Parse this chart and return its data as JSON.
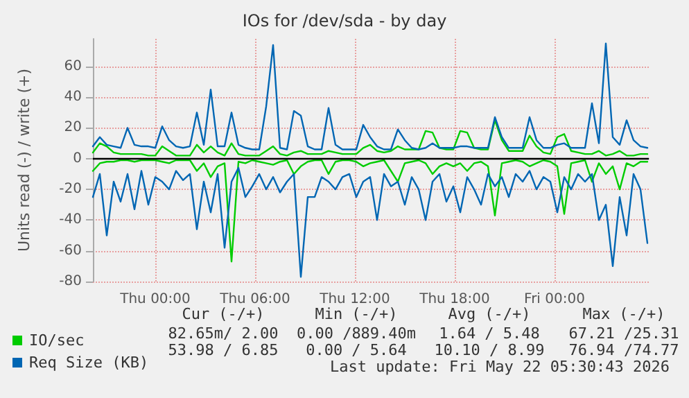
{
  "chart_data": {
    "type": "line",
    "title": "IOs for /dev/sda - by day",
    "ylabel": "Units read (-) / write (+)",
    "x": [
      "2026-05-20T20:15",
      "2026-05-20T20:40",
      "2026-05-20T21:05",
      "2026-05-20T21:30",
      "2026-05-20T21:55",
      "2026-05-20T22:20",
      "2026-05-20T22:45",
      "2026-05-20T23:10",
      "2026-05-20T23:35",
      "2026-05-21T00:00",
      "2026-05-21T00:25",
      "2026-05-21T00:50",
      "2026-05-21T01:15",
      "2026-05-21T01:40",
      "2026-05-21T02:05",
      "2026-05-21T02:30",
      "2026-05-21T02:55",
      "2026-05-21T03:20",
      "2026-05-21T03:45",
      "2026-05-21T04:10",
      "2026-05-21T04:35",
      "2026-05-21T05:00",
      "2026-05-21T05:25",
      "2026-05-21T05:50",
      "2026-05-21T06:15",
      "2026-05-21T06:40",
      "2026-05-21T07:05",
      "2026-05-21T07:30",
      "2026-05-21T07:55",
      "2026-05-21T08:20",
      "2026-05-21T08:45",
      "2026-05-21T09:10",
      "2026-05-21T09:35",
      "2026-05-21T10:00",
      "2026-05-21T10:25",
      "2026-05-21T10:50",
      "2026-05-21T11:15",
      "2026-05-21T11:40",
      "2026-05-21T12:05",
      "2026-05-21T12:30",
      "2026-05-21T12:55",
      "2026-05-21T13:20",
      "2026-05-21T13:45",
      "2026-05-21T14:10",
      "2026-05-21T14:35",
      "2026-05-21T15:00",
      "2026-05-21T15:25",
      "2026-05-21T15:50",
      "2026-05-21T16:15",
      "2026-05-21T16:40",
      "2026-05-21T17:05",
      "2026-05-21T17:30",
      "2026-05-21T17:55",
      "2026-05-21T18:20",
      "2026-05-21T18:45",
      "2026-05-21T19:10",
      "2026-05-21T19:35",
      "2026-05-21T20:00",
      "2026-05-21T20:25",
      "2026-05-21T20:50",
      "2026-05-21T21:15",
      "2026-05-21T21:40",
      "2026-05-21T22:05",
      "2026-05-21T22:30",
      "2026-05-21T22:55",
      "2026-05-21T23:20",
      "2026-05-21T23:45",
      "2026-05-22T00:10",
      "2026-05-22T00:35",
      "2026-05-22T01:00",
      "2026-05-22T01:25",
      "2026-05-22T01:50",
      "2026-05-22T02:15",
      "2026-05-22T02:40",
      "2026-05-22T03:05",
      "2026-05-22T03:30",
      "2026-05-22T03:55",
      "2026-05-22T04:20",
      "2026-05-22T04:45",
      "2026-05-22T05:10",
      "2026-05-22T05:35"
    ],
    "series": [
      {
        "name": "IO/sec",
        "color": "#00cc00",
        "values": [
          4,
          10,
          8,
          4,
          3,
          3,
          3,
          3,
          2,
          2,
          8,
          5,
          2,
          2,
          2,
          9,
          4,
          8,
          4,
          2,
          10,
          3,
          2,
          2,
          2,
          5,
          8,
          3,
          2,
          4,
          5,
          3,
          3,
          3,
          5,
          4,
          3,
          3,
          3,
          7,
          9,
          5,
          4,
          5,
          8,
          6,
          6,
          6,
          18,
          17,
          7,
          6,
          6,
          18,
          17,
          7,
          6,
          6,
          25,
          12,
          5,
          5,
          5,
          15,
          8,
          4,
          3,
          14,
          16,
          5,
          4,
          3,
          3,
          5,
          2,
          3,
          5,
          2,
          2,
          3,
          3
        ]
      },
      {
        "color": "#00cc00",
        "values": [
          -8,
          -3,
          -2,
          -2,
          -1,
          -1,
          -2,
          -1,
          -1,
          -1,
          -2,
          -3,
          -1,
          -1,
          -1,
          -8,
          -3,
          -12,
          -5,
          -3,
          -67,
          -2,
          -3,
          -1,
          -2,
          -3,
          -4,
          -2,
          -1,
          -10,
          -5,
          -2,
          -1,
          -1,
          -10,
          -2,
          -1,
          -1,
          -2,
          -5,
          -3,
          -2,
          -1,
          -8,
          -15,
          -3,
          -2,
          -1,
          -3,
          -10,
          -5,
          -3,
          -5,
          -3,
          -8,
          -3,
          -2,
          -5,
          -37,
          -3,
          -2,
          -1,
          -2,
          -5,
          -3,
          -1,
          -2,
          -5,
          -36,
          -3,
          -2,
          -1,
          -15,
          -3,
          -10,
          -5,
          -20,
          -3,
          -5,
          -2,
          -2
        ]
      },
      {
        "name": "Req Size (KB)",
        "color": "#0066b3",
        "values": [
          8,
          14,
          9,
          8,
          7,
          20,
          9,
          8,
          8,
          7,
          21,
          12,
          8,
          7,
          8,
          30,
          9,
          45,
          8,
          8,
          30,
          9,
          7,
          6,
          6,
          34,
          74,
          7,
          6,
          31,
          28,
          8,
          6,
          6,
          33,
          9,
          6,
          6,
          6,
          22,
          14,
          8,
          6,
          6,
          19,
          12,
          7,
          6,
          7,
          10,
          7,
          7,
          7,
          8,
          8,
          7,
          7,
          7,
          27,
          14,
          7,
          7,
          7,
          27,
          12,
          7,
          7,
          9,
          10,
          7,
          7,
          7,
          36,
          10,
          75,
          14,
          9,
          25,
          12,
          8,
          7
        ]
      },
      {
        "color": "#0066b3",
        "values": [
          -25,
          -10,
          -50,
          -15,
          -28,
          -10,
          -33,
          -8,
          -30,
          -12,
          -15,
          -20,
          -8,
          -14,
          -10,
          -46,
          -15,
          -35,
          -10,
          -58,
          -15,
          -6,
          -25,
          -18,
          -10,
          -20,
          -12,
          -22,
          -15,
          -10,
          -77,
          -25,
          -25,
          -12,
          -15,
          -20,
          -12,
          -10,
          -25,
          -15,
          -12,
          -40,
          -10,
          -18,
          -15,
          -30,
          -12,
          -20,
          -40,
          -15,
          -10,
          -28,
          -18,
          -35,
          -12,
          -20,
          -30,
          -10,
          -18,
          -12,
          -25,
          -10,
          -15,
          -8,
          -20,
          -12,
          -15,
          -35,
          -12,
          -20,
          -10,
          -15,
          -10,
          -40,
          -30,
          -70,
          -25,
          -50,
          -10,
          -20,
          -55
        ]
      }
    ],
    "xlim": [
      "2026-05-20T20:15",
      "2026-05-22T05:40"
    ],
    "xticks": [
      {
        "value": "2026-05-21T00:00",
        "label": "Thu 00:00"
      },
      {
        "value": "2026-05-21T06:00",
        "label": "Thu 06:00"
      },
      {
        "value": "2026-05-21T12:00",
        "label": "Thu 12:00"
      },
      {
        "value": "2026-05-21T18:00",
        "label": "Thu 18:00"
      },
      {
        "value": "2026-05-22T00:00",
        "label": "Fri 00:00"
      }
    ],
    "ylim": [
      -80,
      78
    ],
    "yticks": [
      -80,
      -60,
      -40,
      -20,
      0,
      20,
      40,
      60
    ],
    "ref_lines": [
      {
        "axis": "y",
        "value": 0,
        "color": "#000000"
      }
    ],
    "grid": true,
    "legend": "bottom left",
    "annotations": [
      "Cur (-/+)",
      "Min (-/+)",
      "Avg (-/+)",
      "Max (-/+)",
      "82.65m/ 2.00",
      "0.00 /889.40m",
      "1.64 / 5.48",
      "67.21 /25.31",
      "53.98 / 6.85",
      "0.00 / 5.64",
      "10.10 / 8.99",
      "76.94 /74.77",
      "Last update: Fri May 22 05:30:43 2026"
    ]
  }
}
